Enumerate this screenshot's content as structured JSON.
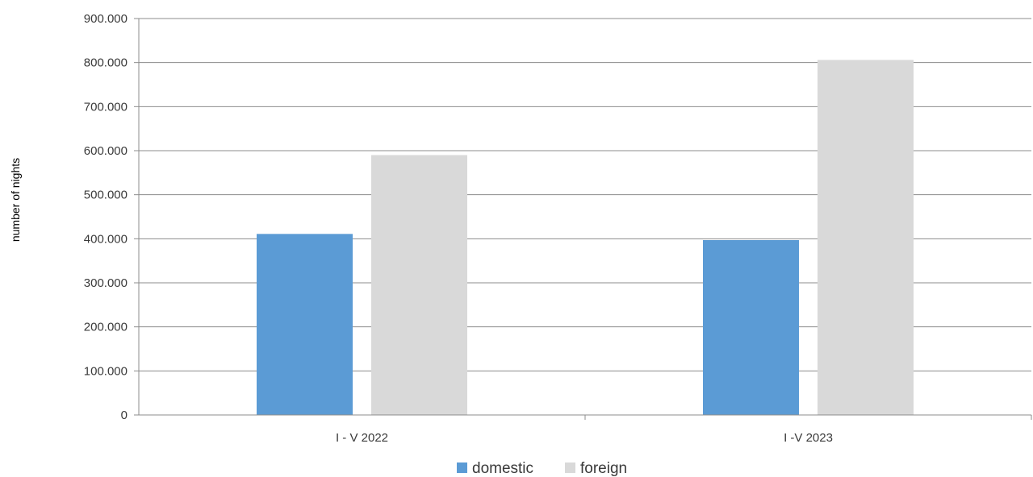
{
  "chart_data": {
    "type": "bar",
    "title": "",
    "xlabel": "",
    "ylabel": "number of nights",
    "categories": [
      "I - V 2022",
      "I -V 2023"
    ],
    "series": [
      {
        "name": "domestic",
        "values": [
          411000,
          397000
        ],
        "color": "#5b9bd5"
      },
      {
        "name": "foreign",
        "values": [
          590000,
          806000
        ],
        "color": "#d9d9d9"
      }
    ],
    "ylim": [
      0,
      900000
    ],
    "yticks": [
      "0",
      "100.000",
      "200.000",
      "300.000",
      "400.000",
      "500.000",
      "600.000",
      "700.000",
      "800.000",
      "900.000"
    ],
    "grid": true,
    "legend": "bottom"
  }
}
